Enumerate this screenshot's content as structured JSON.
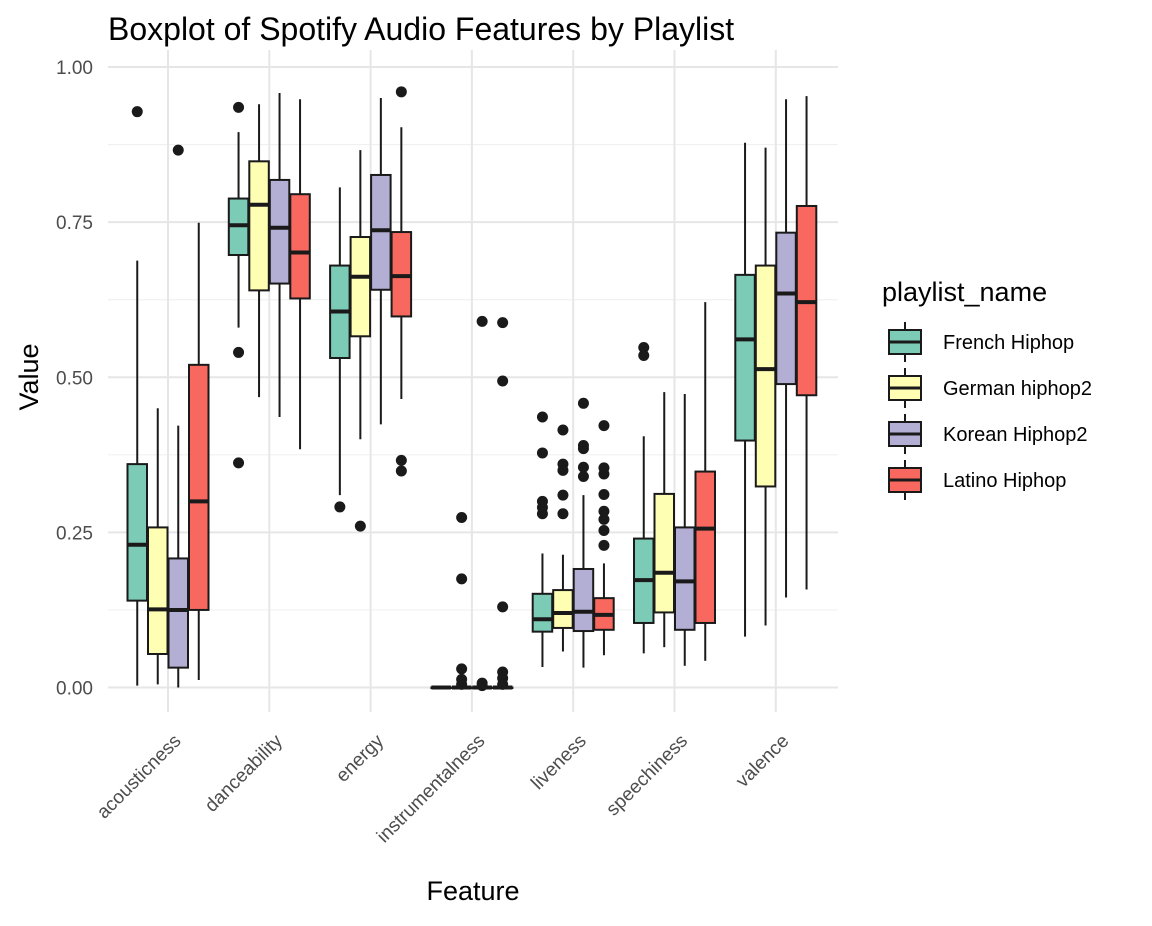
{
  "chart_data": {
    "type": "boxplot",
    "title": "Boxplot of Spotify Audio Features by Playlist",
    "xlabel": "Feature",
    "ylabel": "Value",
    "ylim": [
      -0.05,
      1.03
    ],
    "yticks": [
      "0.00",
      "0.25",
      "0.50",
      "0.75",
      "1.00"
    ],
    "ytick_values": [
      0,
      0.25,
      0.5,
      0.75,
      1.0
    ],
    "grid": true,
    "legend_position": "right",
    "categories": [
      "acousticness",
      "danceability",
      "energy",
      "instrumentalness",
      "liveness",
      "speechiness",
      "valence"
    ],
    "legend": {
      "title": "playlist_name",
      "entries": [
        "French Hiphop",
        "German hiphop2",
        "Korean Hiphop2",
        "Latino Hiphop"
      ]
    },
    "colors": [
      "#7ccbb7",
      "#ffffb3",
      "#b3aed3",
      "#f8685e"
    ],
    "series": [
      {
        "name": "French Hiphop",
        "boxes": [
          {
            "min": 0.003,
            "q1": 0.14,
            "median": 0.23,
            "q3": 0.36,
            "max": 0.688,
            "outliers": [
              0.928
            ]
          },
          {
            "min": 0.58,
            "q1": 0.697,
            "median": 0.745,
            "q3": 0.788,
            "max": 0.895,
            "outliers": [
              0.935,
              0.54,
              0.362
            ]
          },
          {
            "min": 0.31,
            "q1": 0.531,
            "median": 0.606,
            "q3": 0.68,
            "max": 0.806,
            "outliers": [
              0.291
            ]
          },
          {
            "min": 0.0,
            "q1": 0.0,
            "median": 0.0,
            "q3": 0.0,
            "max": 0.0,
            "outliers": []
          },
          {
            "min": 0.033,
            "q1": 0.09,
            "median": 0.11,
            "q3": 0.151,
            "max": 0.216,
            "outliers": [
              0.436,
              0.378,
              0.3,
              0.29,
              0.28
            ]
          },
          {
            "min": 0.055,
            "q1": 0.104,
            "median": 0.173,
            "q3": 0.24,
            "max": 0.405,
            "outliers": [
              0.548,
              0.535
            ]
          },
          {
            "min": 0.082,
            "q1": 0.398,
            "median": 0.561,
            "q3": 0.665,
            "max": 0.878,
            "outliers": []
          }
        ]
      },
      {
        "name": "German hiphop2",
        "boxes": [
          {
            "min": 0.005,
            "q1": 0.054,
            "median": 0.126,
            "q3": 0.258,
            "max": 0.45,
            "outliers": []
          },
          {
            "min": 0.468,
            "q1": 0.64,
            "median": 0.778,
            "q3": 0.848,
            "max": 0.94,
            "outliers": []
          },
          {
            "min": 0.4,
            "q1": 0.566,
            "median": 0.662,
            "q3": 0.726,
            "max": 0.866,
            "outliers": [
              0.26
            ]
          },
          {
            "min": 0.0,
            "q1": 0.0,
            "median": 0.0,
            "q3": 0.0,
            "max": 0.0,
            "outliers": [
              0.274,
              0.175,
              0.03,
              0.013,
              0.005
            ]
          },
          {
            "min": 0.058,
            "q1": 0.096,
            "median": 0.12,
            "q3": 0.157,
            "max": 0.214,
            "outliers": [
              0.415,
              0.36,
              0.35,
              0.31,
              0.28
            ]
          },
          {
            "min": 0.065,
            "q1": 0.121,
            "median": 0.185,
            "q3": 0.312,
            "max": 0.476,
            "outliers": []
          },
          {
            "min": 0.1,
            "q1": 0.324,
            "median": 0.513,
            "q3": 0.68,
            "max": 0.87,
            "outliers": []
          }
        ]
      },
      {
        "name": "Korean Hiphop2",
        "boxes": [
          {
            "min": 0.0,
            "q1": 0.032,
            "median": 0.125,
            "q3": 0.208,
            "max": 0.422,
            "outliers": [
              0.866
            ]
          },
          {
            "min": 0.436,
            "q1": 0.651,
            "median": 0.741,
            "q3": 0.818,
            "max": 0.958,
            "outliers": []
          },
          {
            "min": 0.424,
            "q1": 0.641,
            "median": 0.737,
            "q3": 0.826,
            "max": 0.95,
            "outliers": []
          },
          {
            "min": 0.0,
            "q1": 0.0,
            "median": 0.0,
            "q3": 0.0,
            "max": 0.0,
            "outliers": [
              0.59,
              0.007,
              0.003
            ]
          },
          {
            "min": 0.032,
            "q1": 0.091,
            "median": 0.122,
            "q3": 0.191,
            "max": 0.31,
            "outliers": [
              0.458,
              0.39,
              0.385,
              0.355,
              0.34
            ]
          },
          {
            "min": 0.035,
            "q1": 0.093,
            "median": 0.171,
            "q3": 0.258,
            "max": 0.473,
            "outliers": []
          },
          {
            "min": 0.145,
            "q1": 0.489,
            "median": 0.635,
            "q3": 0.733,
            "max": 0.948,
            "outliers": []
          }
        ]
      },
      {
        "name": "Latino Hiphop",
        "boxes": [
          {
            "min": 0.012,
            "q1": 0.125,
            "median": 0.3,
            "q3": 0.52,
            "max": 0.749,
            "outliers": []
          },
          {
            "min": 0.384,
            "q1": 0.627,
            "median": 0.701,
            "q3": 0.795,
            "max": 0.948,
            "outliers": []
          },
          {
            "min": 0.465,
            "q1": 0.598,
            "median": 0.663,
            "q3": 0.734,
            "max": 0.903,
            "outliers": [
              0.96,
              0.366,
              0.349
            ]
          },
          {
            "min": 0.0,
            "q1": 0.0,
            "median": 0.0,
            "q3": 0.0,
            "max": 0.0,
            "outliers": [
              0.588,
              0.494,
              0.13,
              0.025,
              0.015,
              0.005
            ]
          },
          {
            "min": 0.052,
            "q1": 0.093,
            "median": 0.117,
            "q3": 0.144,
            "max": 0.2,
            "outliers": [
              0.422,
              0.354,
              0.344,
              0.311,
              0.284,
              0.271,
              0.253,
              0.229
            ]
          },
          {
            "min": 0.043,
            "q1": 0.104,
            "median": 0.256,
            "q3": 0.348,
            "max": 0.621,
            "outliers": []
          },
          {
            "min": 0.158,
            "q1": 0.471,
            "median": 0.621,
            "q3": 0.776,
            "max": 0.953,
            "outliers": []
          }
        ]
      }
    ]
  }
}
